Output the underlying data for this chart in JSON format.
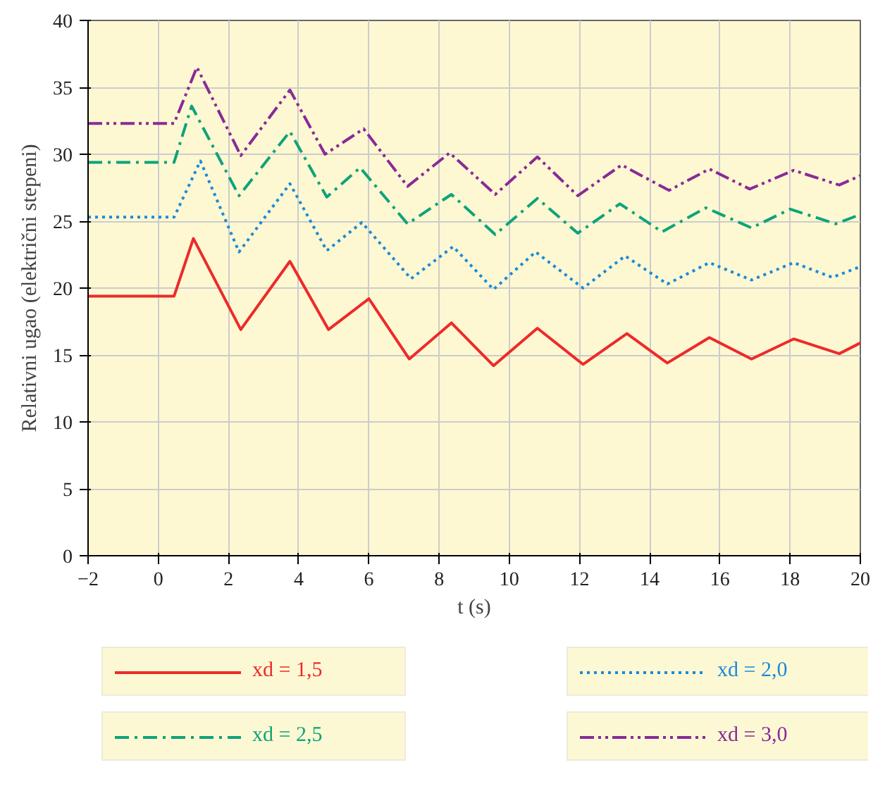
{
  "chart_data": {
    "type": "line",
    "xlabel": "t (s)",
    "ylabel": "Relativni ugao (električni stepeni)",
    "xlim": [
      -2,
      20
    ],
    "ylim": [
      0,
      40
    ],
    "xticks": [
      -2,
      0,
      2,
      4,
      6,
      8,
      10,
      12,
      14,
      16,
      18,
      20
    ],
    "yticks": [
      0,
      5,
      10,
      15,
      20,
      25,
      30,
      35,
      40
    ],
    "grid": true,
    "legend": "bottom",
    "marker": "none",
    "series": [
      {
        "name": "xd = 1,5",
        "color": "#ee2a2a",
        "line_style": "solid",
        "x": [
          -2,
          0.45,
          1.0,
          2.35,
          3.75,
          4.85,
          6.0,
          7.15,
          8.35,
          9.55,
          10.8,
          12.1,
          13.35,
          14.5,
          15.7,
          16.9,
          18.1,
          19.4,
          20
        ],
        "values": [
          19.4,
          19.4,
          23.7,
          16.9,
          22.0,
          16.9,
          19.2,
          14.7,
          17.4,
          14.2,
          17.0,
          14.3,
          16.6,
          14.4,
          16.3,
          14.7,
          16.2,
          15.1,
          15.9
        ]
      },
      {
        "name": "xd = 2,0",
        "color": "#1b8ad8",
        "line_style": "dotted",
        "x": [
          -2,
          0.45,
          1.2,
          2.3,
          3.75,
          4.8,
          5.8,
          7.2,
          8.4,
          9.55,
          10.75,
          12.1,
          13.3,
          14.5,
          15.7,
          16.9,
          18.1,
          19.2,
          20
        ],
        "values": [
          25.3,
          25.3,
          29.5,
          22.7,
          27.8,
          22.8,
          24.9,
          20.7,
          23.1,
          19.9,
          22.7,
          20.0,
          22.4,
          20.3,
          21.9,
          20.6,
          21.9,
          20.8,
          21.6
        ]
      },
      {
        "name": "xd = 2,5",
        "color": "#0ea37a",
        "line_style": "dashdot",
        "x": [
          -2,
          0.45,
          0.95,
          2.3,
          3.75,
          4.8,
          5.75,
          7.1,
          8.35,
          9.6,
          10.8,
          11.95,
          13.15,
          14.35,
          15.6,
          16.9,
          18.0,
          19.3,
          20
        ],
        "values": [
          29.4,
          29.4,
          33.6,
          26.9,
          31.7,
          26.8,
          29.0,
          24.8,
          27.0,
          24.0,
          26.7,
          24.1,
          26.3,
          24.2,
          26.0,
          24.5,
          25.9,
          24.8,
          25.5
        ]
      },
      {
        "name": "xd = 3,0",
        "color": "#8a2a96",
        "line_style": "dashdotdot",
        "x": [
          -2,
          0.45,
          1.1,
          2.35,
          3.75,
          4.75,
          5.85,
          7.1,
          8.3,
          9.6,
          10.8,
          11.95,
          13.2,
          14.55,
          15.7,
          16.85,
          18.1,
          19.4,
          20
        ],
        "values": [
          32.3,
          32.3,
          36.5,
          29.9,
          34.8,
          30.0,
          31.9,
          27.6,
          30.1,
          27.0,
          29.8,
          26.9,
          29.2,
          27.3,
          28.9,
          27.4,
          28.8,
          27.7,
          28.4
        ]
      }
    ]
  }
}
